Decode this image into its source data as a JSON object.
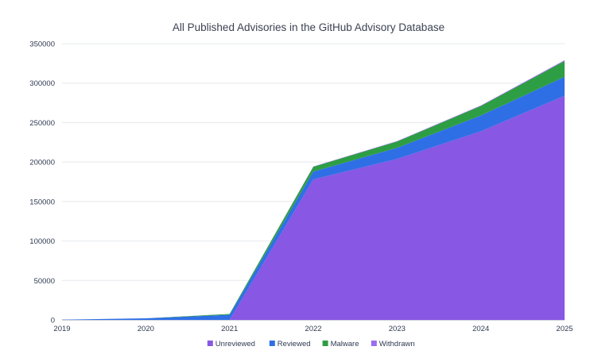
{
  "chart_data": {
    "type": "area",
    "stacked": true,
    "title": "All Published Advisories in the GitHub Advisory Database",
    "xlabel": "",
    "ylabel": "",
    "x": [
      "2019",
      "2020",
      "2021",
      "2022",
      "2023",
      "2024",
      "2025"
    ],
    "y_ticks": [
      "0",
      "50000",
      "100000",
      "150000",
      "200000",
      "250000",
      "300000",
      "350000"
    ],
    "ylim": [
      0,
      350000
    ],
    "grid": true,
    "legend_position": "bottom-center",
    "series": [
      {
        "name": "Unreviewed",
        "color": "#8857e3",
        "values": [
          0,
          0,
          0,
          178000,
          204000,
          239000,
          284000
        ]
      },
      {
        "name": "Reviewed",
        "color": "#2f6fe6",
        "values": [
          300,
          2000,
          6500,
          10000,
          14000,
          20000,
          24000
        ]
      },
      {
        "name": "Malware",
        "color": "#2e9e44",
        "values": [
          0,
          0,
          1000,
          6000,
          8000,
          12000,
          20000
        ]
      },
      {
        "name": "Withdrawn",
        "color": "#9a6cf0",
        "values": [
          0,
          0,
          0,
          400,
          500,
          700,
          1000
        ]
      }
    ]
  }
}
